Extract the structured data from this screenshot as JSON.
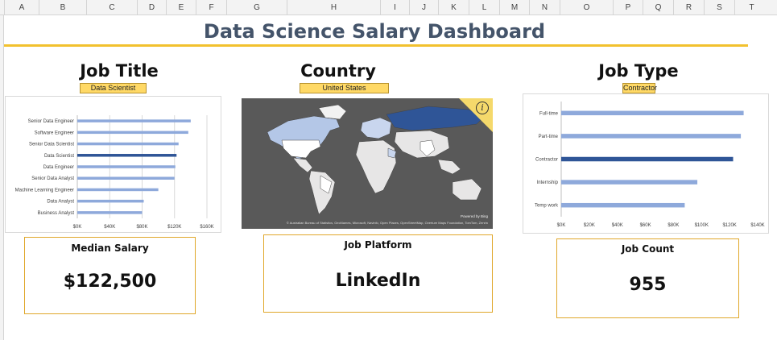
{
  "columns": [
    "A",
    "B",
    "C",
    "D",
    "E",
    "F",
    "G",
    "H",
    "I",
    "J",
    "K",
    "L",
    "M",
    "N",
    "O",
    "P",
    "Q",
    "R",
    "S",
    "T"
  ],
  "dashboard": {
    "title": "Data Science Salary Dashboard"
  },
  "job_title": {
    "heading": "Job Title",
    "selected": "Data Scientist"
  },
  "country": {
    "heading": "Country",
    "selected": "United States"
  },
  "job_type": {
    "heading": "Job Type",
    "selected": "Contractor"
  },
  "map": {
    "powered_by": "Powered by Bing",
    "credits": "© Australian Bureau of Statistics, GeoNames, Microsoft, Navinfo, Open Places, OpenStreetMap, Overture Maps Foundation, TomTom, Zenrin",
    "info_icon": "info-icon"
  },
  "kpis": {
    "median_salary_label": "Median Salary",
    "median_salary_value": "$122,500",
    "platform_label": "Job Platform",
    "platform_value": "LinkedIn",
    "job_count_label": "Job Count",
    "job_count_value": "955"
  },
  "colors": {
    "bar": "#8ea9db",
    "bar_selected": "#2f5597",
    "accent": "#f2c12e",
    "title": "#44546a",
    "selector": "#ffd966"
  },
  "chart_data": [
    {
      "type": "bar",
      "orientation": "horizontal",
      "categories": [
        "Senior Data Engineer",
        "Software Engineer",
        "Senior Data Scientist",
        "Data Scientist",
        "Data Engineer",
        "Senior Data Analyst",
        "Machine Learning Engineer",
        "Data Analyst",
        "Business Analyst"
      ],
      "values": [
        140000,
        137000,
        125000,
        122500,
        121000,
        120000,
        100000,
        82000,
        80000
      ],
      "highlight": "Data Scientist",
      "xlim": [
        0,
        160000
      ],
      "xticks": [
        "$0K",
        "$40K",
        "$80K",
        "$120K",
        "$160K"
      ],
      "grid": true
    },
    {
      "type": "bar",
      "orientation": "horizontal",
      "categories": [
        "Full-time",
        "Part-time",
        "Contractor",
        "Internship",
        "Temp work"
      ],
      "values": [
        130000,
        128000,
        122500,
        97000,
        88000
      ],
      "highlight": "Contractor",
      "xlim": [
        0,
        140000
      ],
      "xticks": [
        "$0K",
        "$20K",
        "$40K",
        "$60K",
        "$80K",
        "$100K",
        "$120K",
        "$140K"
      ],
      "grid": false
    }
  ]
}
